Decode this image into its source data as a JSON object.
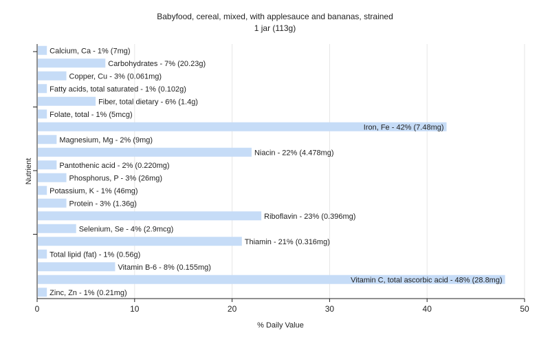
{
  "chart_data": {
    "type": "bar",
    "orientation": "horizontal",
    "title": "Babyfood, cereal, mixed, with applesauce and bananas, strained",
    "subtitle": "1 jar (113g)",
    "xlabel": "% Daily Value",
    "ylabel": "Nutrient",
    "xlim": [
      0,
      50
    ],
    "xticks": [
      0,
      10,
      20,
      30,
      40,
      50
    ],
    "grid": "vertical",
    "bar_color": "#c6dcf7",
    "categories": [
      "Calcium, Ca",
      "Carbohydrates",
      "Copper, Cu",
      "Fatty acids, total saturated",
      "Fiber, total dietary",
      "Folate, total",
      "Iron, Fe",
      "Magnesium, Mg",
      "Niacin",
      "Pantothenic acid",
      "Phosphorus, P",
      "Potassium, K",
      "Protein",
      "Riboflavin",
      "Selenium, Se",
      "Thiamin",
      "Total lipid (fat)",
      "Vitamin B-6",
      "Vitamin C, total ascorbic acid",
      "Zinc, Zn"
    ],
    "values": [
      1,
      7,
      3,
      1,
      6,
      1,
      42,
      2,
      22,
      2,
      3,
      1,
      3,
      23,
      4,
      21,
      1,
      8,
      48,
      1
    ],
    "labels": [
      "Calcium, Ca - 1% (7mg)",
      "Carbohydrates - 7% (20.23g)",
      "Copper, Cu - 3% (0.061mg)",
      "Fatty acids, total saturated - 1% (0.102g)",
      "Fiber, total dietary - 6% (1.4g)",
      "Folate, total - 1% (5mcg)",
      "Iron, Fe - 42% (7.48mg)",
      "Magnesium, Mg - 2% (9mg)",
      "Niacin - 22% (4.478mg)",
      "Pantothenic acid - 2% (0.220mg)",
      "Phosphorus, P - 3% (26mg)",
      "Potassium, K - 1% (46mg)",
      "Protein - 3% (1.36g)",
      "Riboflavin - 23% (0.396mg)",
      "Selenium, Se - 4% (2.9mcg)",
      "Thiamin - 21% (0.316mg)",
      "Total lipid (fat) - 1% (0.56g)",
      "Vitamin B-6 - 8% (0.155mg)",
      "Vitamin C, total ascorbic acid - 48% (28.8mg)",
      "Zinc, Zn - 1% (0.21mg)"
    ]
  }
}
